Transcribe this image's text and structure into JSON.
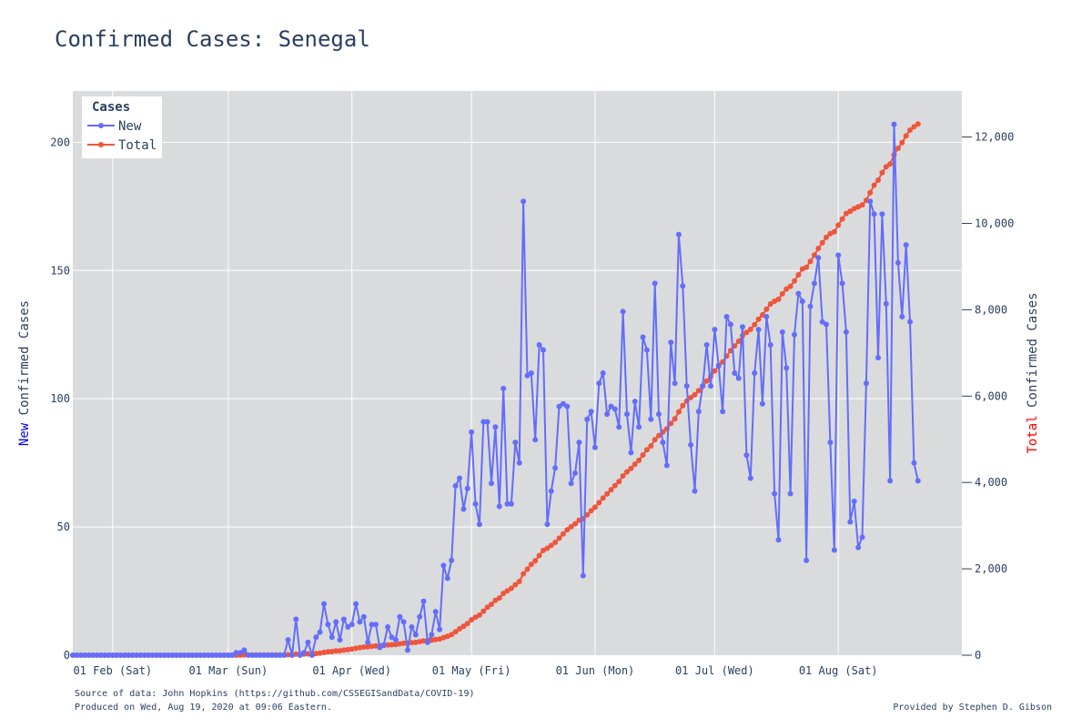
{
  "chart_data": {
    "type": "line",
    "title": "Confirmed Cases: Senegal",
    "y_left_label_prefix": "New",
    "y_left_label_rest": " Confirmed Cases",
    "y_left_prefix_color": "#0000ff",
    "y_right_label_prefix": "Total",
    "y_right_label_rest": " Confirmed Cases",
    "y_right_prefix_color": "#ff0000",
    "x_range": [
      "2020-01-22",
      "2020-09-01"
    ],
    "x_ticks": [
      {
        "date": "2020-02-01",
        "label": "01 Feb (Sat)"
      },
      {
        "date": "2020-03-01",
        "label": "01 Mar (Sun)"
      },
      {
        "date": "2020-04-01",
        "label": "01 Apr (Wed)"
      },
      {
        "date": "2020-05-01",
        "label": "01 May (Fri)"
      },
      {
        "date": "2020-06-01",
        "label": "01 Jun (Mon)"
      },
      {
        "date": "2020-07-01",
        "label": "01 Jul (Wed)"
      },
      {
        "date": "2020-08-01",
        "label": "01 Aug (Sat)"
      }
    ],
    "y_left_range": [
      0,
      220
    ],
    "y_left_ticks": [
      0,
      50,
      100,
      150,
      200
    ],
    "y_left_tick_labels": [
      "0",
      "50",
      "100",
      "150",
      "200"
    ],
    "y_right_range": [
      0,
      13066
    ],
    "y_right_ticks": [
      0,
      2000,
      4000,
      6000,
      8000,
      10000,
      12000
    ],
    "y_right_tick_labels": [
      "0",
      "2,000",
      "4,000",
      "6,000",
      "8,000",
      "10,000",
      "12,000"
    ],
    "grid": true,
    "legend": {
      "title": "Cases",
      "position": "top-left"
    },
    "series": [
      {
        "name": "New",
        "color": "#636efa",
        "axis": "left",
        "start_date": "2020-01-22",
        "values": [
          0,
          0,
          0,
          0,
          0,
          0,
          0,
          0,
          0,
          0,
          0,
          0,
          0,
          0,
          0,
          0,
          0,
          0,
          0,
          0,
          0,
          0,
          0,
          0,
          0,
          0,
          0,
          0,
          0,
          0,
          0,
          0,
          0,
          0,
          0,
          0,
          0,
          0,
          0,
          0,
          0,
          1,
          1,
          2,
          0,
          0,
          0,
          0,
          0,
          0,
          0,
          0,
          0,
          0,
          6,
          0,
          14,
          0,
          1,
          5,
          0,
          7,
          9,
          20,
          12,
          7,
          13,
          6,
          14,
          11,
          12,
          20,
          13,
          15,
          5,
          12,
          12,
          3,
          4,
          11,
          7,
          6,
          15,
          13,
          2,
          11,
          8,
          15,
          21,
          5,
          8,
          17,
          10,
          35,
          30,
          37,
          66,
          69,
          57,
          65,
          87,
          59,
          51,
          91,
          91,
          67,
          89,
          58,
          104,
          59,
          59,
          83,
          75,
          177,
          109,
          110,
          84,
          121,
          119,
          51,
          64,
          73,
          97,
          98,
          97,
          67,
          71,
          83,
          31,
          92,
          95,
          81,
          106,
          110,
          94,
          97,
          96,
          89,
          134,
          94,
          79,
          99,
          89,
          124,
          119,
          92,
          145,
          94,
          83,
          74,
          122,
          106,
          164,
          144,
          105,
          82,
          64,
          95,
          105,
          121,
          105,
          127,
          113,
          95,
          132,
          129,
          110,
          108,
          128,
          78,
          69,
          110,
          127,
          98,
          132,
          121,
          63,
          45,
          126,
          112,
          63,
          125,
          141,
          138,
          37,
          136,
          145,
          155,
          130,
          129,
          83,
          41,
          156,
          145,
          126,
          52,
          60,
          42,
          46,
          106,
          177,
          172,
          116,
          172,
          137,
          68,
          207,
          153,
          132,
          160,
          130,
          75,
          68
        ]
      },
      {
        "name": "Total",
        "color": "#ef553b",
        "axis": "right",
        "start_date": "2020-01-22"
      }
    ]
  },
  "footnotes": {
    "source": "Source of data: John Hopkins (https://github.com/CSSEGISandData/COVID-19)",
    "produced": "Produced on Wed, Aug 19, 2020 at 09:06 Eastern.",
    "credit": "Provided by Stephen D. Gibson"
  }
}
